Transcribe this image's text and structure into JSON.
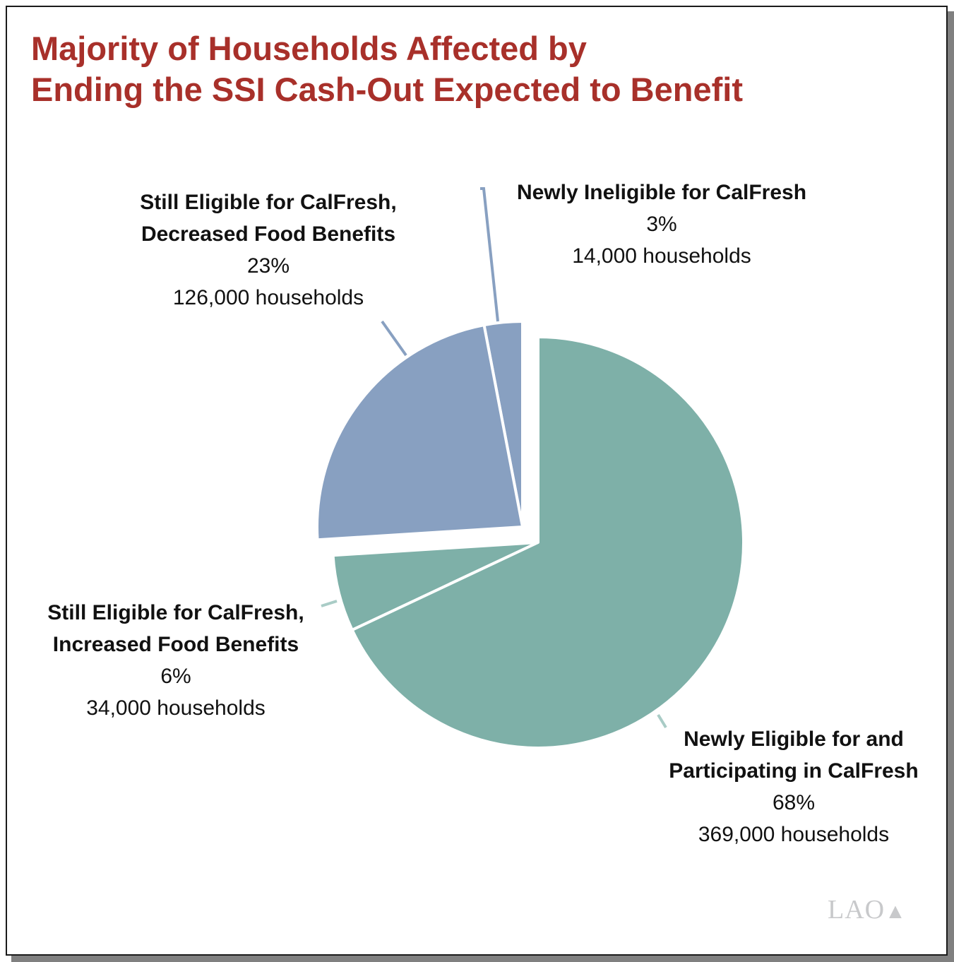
{
  "chart_data": {
    "type": "pie",
    "title": "Majority of Households Affected by Ending the SSI Cash-Out Expected to Benefit",
    "title_lines": [
      "Majority of Households Affected by",
      "Ending the SSI Cash-Out Expected to Benefit"
    ],
    "slices": [
      {
        "name_lines": [
          "Newly Eligible for and",
          "Participating in CalFresh"
        ],
        "percent": 68,
        "percent_label": "68%",
        "households_label": "369,000 households",
        "color": "#7eb0a8",
        "exploded": false
      },
      {
        "name_lines": [
          "Still Eligible for CalFresh,",
          "Increased Food Benefits"
        ],
        "percent": 6,
        "percent_label": "6%",
        "households_label": "34,000 households",
        "color": "#7eb0a8",
        "exploded": false
      },
      {
        "name_lines": [
          "Still Eligible for CalFresh,",
          "Decreased Food Benefits"
        ],
        "percent": 23,
        "percent_label": "23%",
        "households_label": "126,000 households",
        "color": "#88a0c1",
        "exploded": true
      },
      {
        "name_lines": [
          "Newly Ineligible for CalFresh"
        ],
        "percent": 3,
        "percent_label": "3%",
        "households_label": "14,000 households",
        "color": "#88a0c1",
        "exploded": true
      }
    ],
    "start_angle": "top, clockwise"
  },
  "logo": {
    "text": "LAO"
  }
}
